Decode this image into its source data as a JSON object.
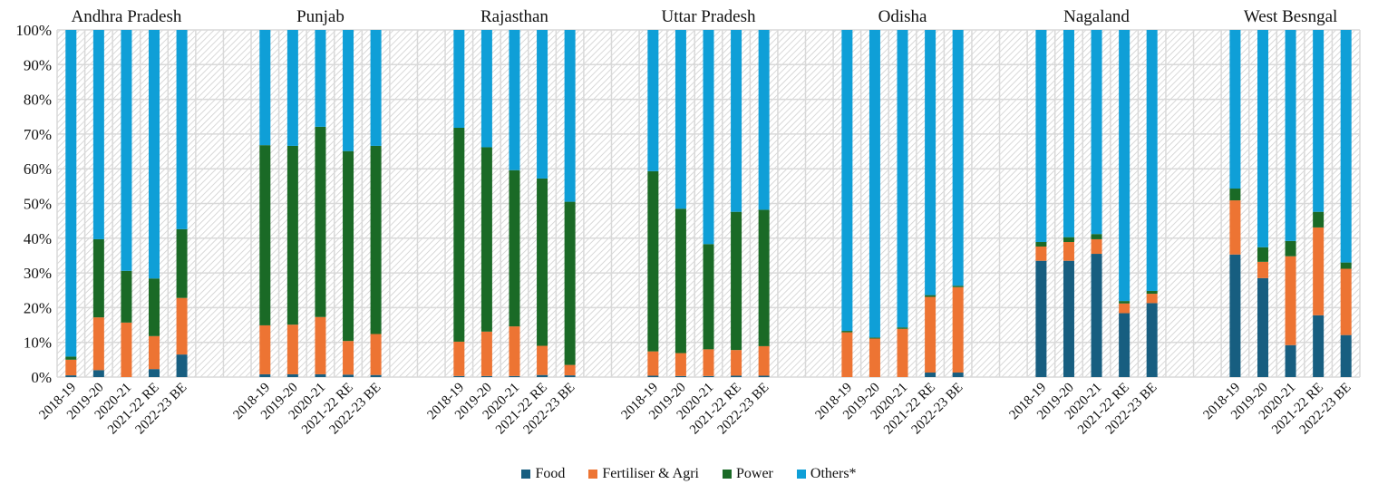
{
  "chart_data": {
    "type": "bar",
    "stacked": true,
    "percent_stacked": true,
    "title": "",
    "xlabel": "",
    "ylabel": "",
    "ylim": [
      0,
      100
    ],
    "yticks": [
      "0%",
      "10%",
      "20%",
      "30%",
      "40%",
      "50%",
      "60%",
      "70%",
      "80%",
      "90%",
      "100%"
    ],
    "grid": true,
    "legend_position": "bottom-center",
    "years": [
      "2018-19",
      "2019-20",
      "2020-21",
      "2021-22 RE",
      "2022-23 BE"
    ],
    "series_names": [
      "Food",
      "Fertiliser & Agri",
      "Power",
      "Others*"
    ],
    "series_colors": [
      "#175e80",
      "#ed7433",
      "#1a6a26",
      "#0f9fd7"
    ],
    "groups": [
      {
        "name": "Andhra Pradesh",
        "series": [
          {
            "name": "Food",
            "values": [
              0.5,
              2.0,
              0.0,
              2.3,
              6.5
            ]
          },
          {
            "name": "Fertiliser & Agri",
            "values": [
              4.5,
              15.2,
              15.7,
              9.5,
              16.3
            ]
          },
          {
            "name": "Power",
            "values": [
              0.9,
              22.5,
              14.9,
              16.6,
              19.8
            ]
          },
          {
            "name": "Others*",
            "values": [
              94.1,
              60.3,
              69.4,
              71.6,
              57.4
            ]
          }
        ]
      },
      {
        "name": "Punjab",
        "series": [
          {
            "name": "Food",
            "values": [
              0.8,
              0.8,
              0.8,
              0.7,
              0.6
            ]
          },
          {
            "name": "Fertiliser & Agri",
            "values": [
              14.1,
              14.3,
              16.5,
              9.7,
              11.8
            ]
          },
          {
            "name": "Power",
            "values": [
              51.9,
              51.5,
              54.8,
              54.7,
              54.2
            ]
          },
          {
            "name": "Others*",
            "values": [
              33.2,
              33.4,
              27.9,
              34.9,
              33.4
            ]
          }
        ]
      },
      {
        "name": "Rajasthan",
        "series": [
          {
            "name": "Food",
            "values": [
              0.3,
              0.3,
              0.3,
              0.6,
              0.5
            ]
          },
          {
            "name": "Fertiliser & Agri",
            "values": [
              9.9,
              12.8,
              14.3,
              8.4,
              3.0
            ]
          },
          {
            "name": "Power",
            "values": [
              61.6,
              53.1,
              45.0,
              48.2,
              47.0
            ]
          },
          {
            "name": "Others*",
            "values": [
              28.2,
              33.8,
              40.4,
              42.8,
              49.5
            ]
          }
        ]
      },
      {
        "name": "Uttar Pradesh",
        "series": [
          {
            "name": "Food",
            "values": [
              0.4,
              0.3,
              0.3,
              0.4,
              0.4
            ]
          },
          {
            "name": "Fertiliser & Agri",
            "values": [
              7.0,
              6.6,
              7.7,
              7.4,
              8.5
            ]
          },
          {
            "name": "Power",
            "values": [
              51.9,
              41.6,
              30.3,
              39.8,
              39.3
            ]
          },
          {
            "name": "Others*",
            "values": [
              40.7,
              51.5,
              61.7,
              52.4,
              51.8
            ]
          }
        ]
      },
      {
        "name": "Odisha",
        "series": [
          {
            "name": "Food",
            "values": [
              0.0,
              0.0,
              0.0,
              1.3,
              1.3
            ]
          },
          {
            "name": "Fertiliser & Agri",
            "values": [
              12.9,
              11.1,
              13.9,
              21.8,
              24.6
            ]
          },
          {
            "name": "Power",
            "values": [
              0.4,
              0.3,
              0.4,
              0.5,
              0.4
            ]
          },
          {
            "name": "Others*",
            "values": [
              86.7,
              88.6,
              85.7,
              76.4,
              73.7
            ]
          }
        ]
      },
      {
        "name": "Nagaland",
        "series": [
          {
            "name": "Food",
            "values": [
              33.5,
              33.5,
              35.5,
              18.4,
              21.3
            ]
          },
          {
            "name": "Fertiliser & Agri",
            "values": [
              4.1,
              5.4,
              4.2,
              2.8,
              2.7
            ]
          },
          {
            "name": "Power",
            "values": [
              1.3,
              1.4,
              1.5,
              0.7,
              0.8
            ]
          },
          {
            "name": "Others*",
            "values": [
              61.1,
              59.7,
              58.8,
              78.1,
              75.2
            ]
          }
        ]
      },
      {
        "name": "West Besngal",
        "series": [
          {
            "name": "Food",
            "values": [
              35.3,
              28.5,
              9.2,
              17.8,
              12.1
            ]
          },
          {
            "name": "Fertiliser & Agri",
            "values": [
              15.6,
              4.7,
              25.6,
              25.3,
              19.1
            ]
          },
          {
            "name": "Power",
            "values": [
              3.4,
              4.2,
              4.4,
              4.5,
              1.8
            ]
          },
          {
            "name": "Others*",
            "values": [
              45.7,
              62.6,
              60.8,
              52.4,
              67.0
            ]
          }
        ]
      }
    ]
  },
  "legend": {
    "items": [
      {
        "label": "Food",
        "color": "#175e80"
      },
      {
        "label": "Fertiliser & Agri",
        "color": "#ed7433"
      },
      {
        "label": "Power",
        "color": "#1a6a26"
      },
      {
        "label": "Others*",
        "color": "#0f9fd7"
      }
    ]
  }
}
